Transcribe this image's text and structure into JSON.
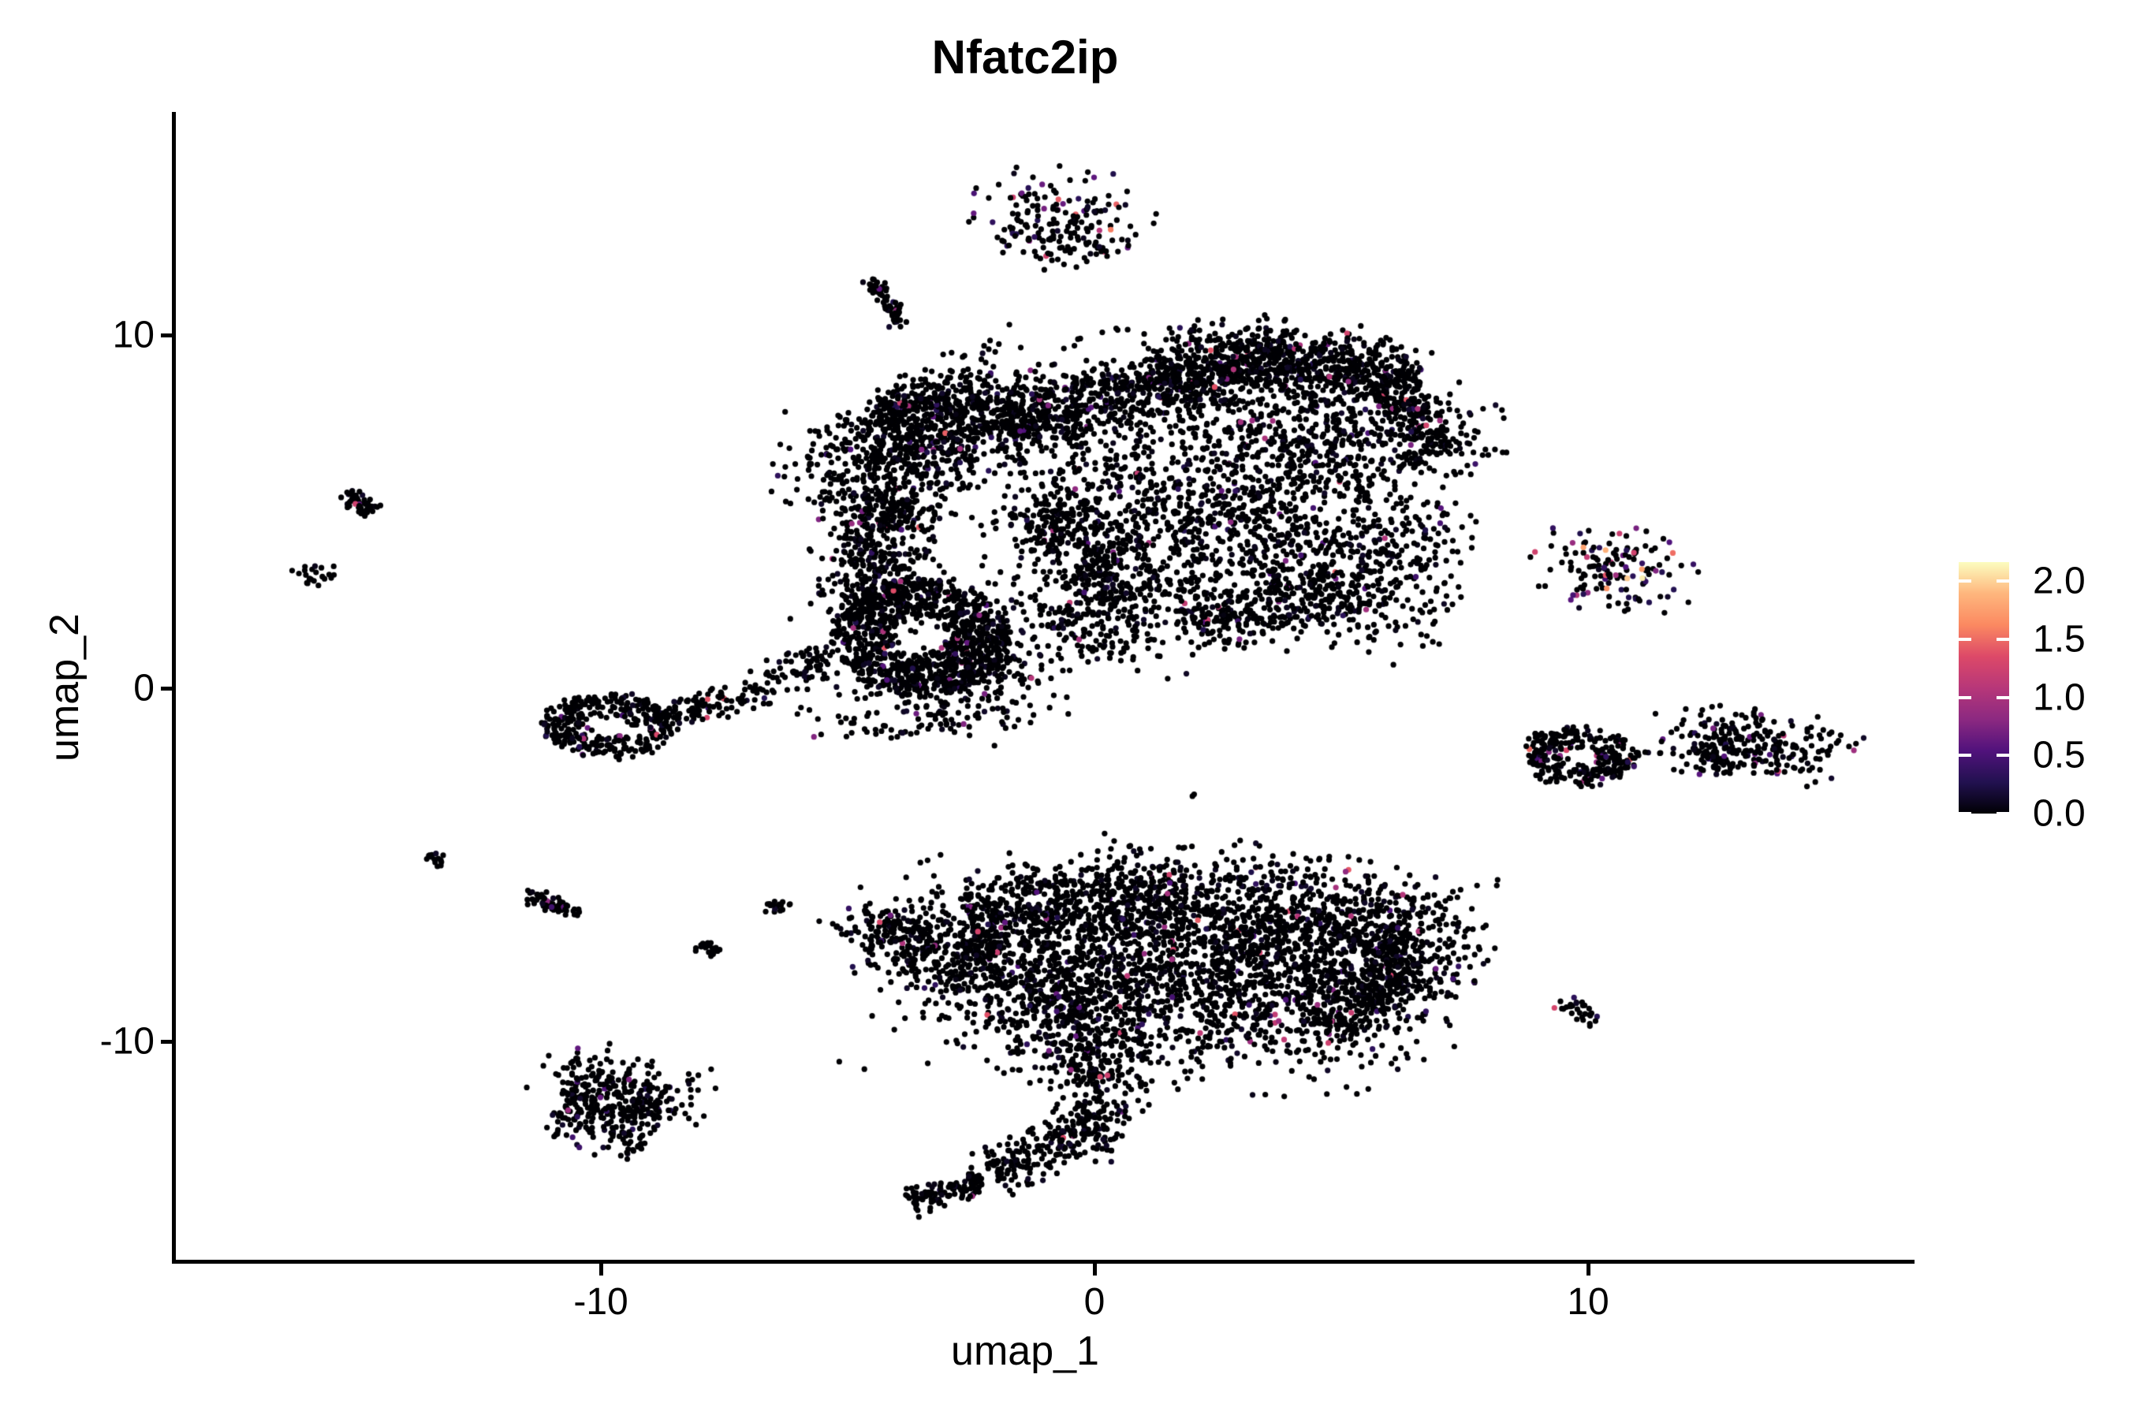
{
  "title": "Nfatc2ip",
  "axes": {
    "x": {
      "label": "umap_1",
      "ticks": [
        "-10",
        "0",
        "10"
      ],
      "tick_values": [
        -10,
        0,
        10
      ]
    },
    "y": {
      "label": "umap_2",
      "ticks": [
        "10",
        "0",
        "-10"
      ],
      "tick_values": [
        10,
        0,
        -10
      ]
    }
  },
  "legend": {
    "tick_labels": [
      "2.0",
      "1.5",
      "1.0",
      "0.5",
      "0.0"
    ],
    "tick_values": [
      2.0,
      1.5,
      1.0,
      0.5,
      0.0
    ],
    "vmin": 0.0,
    "vmax": 2.163,
    "colormap": "magma",
    "gradient_stops": [
      "#000004",
      "#221150",
      "#51127c",
      "#8c2981",
      "#b73779",
      "#dd4968",
      "#fb8961",
      "#feb67d",
      "#fcfdbf"
    ]
  },
  "chart_data": {
    "type": "scatter",
    "title": "Nfatc2ip",
    "xlabel": "umap_1",
    "ylabel": "umap_2",
    "xlim": [
      -18.627,
      16.613
    ],
    "ylim": [
      -16.272,
      16.317
    ],
    "x_ticks": [
      -10,
      0,
      10
    ],
    "y_ticks": [
      -10,
      0,
      10
    ],
    "grid": false,
    "background": "#ffffff",
    "point_radius_px": 3.6,
    "zero_expression_color": "#000004",
    "expression_vmax": 2.163,
    "seed": 1337,
    "default_pos_frac": 0.033,
    "default_max_v": 1.45,
    "clusters": [
      {
        "name": "top-island",
        "shape": "gauss",
        "c": [
          -0.65,
          13.35
        ],
        "r": [
          0.8,
          0.62
        ],
        "rot": -10,
        "n": 150,
        "pos_frac": 0.13,
        "max_v": 1.5
      },
      {
        "name": "top-island-fringe",
        "shape": "gauss",
        "c": [
          -0.45,
          12.55
        ],
        "r": [
          0.65,
          0.4
        ],
        "rot": 0,
        "n": 45,
        "pos_frac": 0.05,
        "max_v": 1.6
      },
      {
        "name": "comma-streak-upper",
        "shape": "streak",
        "p1": [
          -4.6,
          11.6
        ],
        "p2": [
          -4.15,
          10.9
        ],
        "w": 0.11,
        "n": 32,
        "pos_frac": 0.01
      },
      {
        "name": "comma-streak-lower",
        "shape": "streak",
        "p1": [
          -4.15,
          10.9
        ],
        "p2": [
          -3.95,
          10.15
        ],
        "w": 0.11,
        "n": 30,
        "pos_frac": 0.01
      },
      {
        "name": "main-knot",
        "shape": "gauss",
        "c": [
          -3.3,
          7.1
        ],
        "r": [
          1.35,
          0.75
        ],
        "rot": 38,
        "n": 900,
        "pos_frac": 0.035
      },
      {
        "name": "main-knot-cap",
        "shape": "gauss",
        "c": [
          -3.9,
          7.9
        ],
        "r": [
          0.55,
          0.3
        ],
        "rot": 38,
        "n": 130
      },
      {
        "name": "main-knot-west-fringe",
        "shape": "gauss",
        "c": [
          -5.2,
          6.3
        ],
        "r": [
          0.75,
          0.85
        ],
        "rot": 0,
        "n": 55
      },
      {
        "name": "main-band-left",
        "shape": "streak",
        "p1": [
          -1.8,
          7.35
        ],
        "p2": [
          1.2,
          8.65
        ],
        "w": 0.45,
        "n": 430
      },
      {
        "name": "main-band-mid",
        "shape": "streak",
        "p1": [
          1.2,
          8.7
        ],
        "p2": [
          4.2,
          9.4
        ],
        "w": 0.5,
        "n": 620
      },
      {
        "name": "main-band-right",
        "shape": "streak",
        "p1": [
          4.2,
          9.3
        ],
        "p2": [
          6.6,
          8.55
        ],
        "w": 0.45,
        "n": 390
      },
      {
        "name": "main-band-top-fringe",
        "shape": "gauss",
        "c": [
          2.9,
          9.95
        ],
        "r": [
          1.5,
          0.3
        ],
        "rot": 0,
        "n": 70
      },
      {
        "name": "main-right-upper",
        "shape": "gauss",
        "c": [
          4.9,
          7.3
        ],
        "r": [
          1.5,
          0.85
        ],
        "rot": -10,
        "n": 430
      },
      {
        "name": "main-right-edge",
        "shape": "streak",
        "p1": [
          6.35,
          8.2
        ],
        "p2": [
          6.9,
          6.5
        ],
        "w": 0.35,
        "n": 140
      },
      {
        "name": "main-right-mass",
        "shape": "gauss",
        "c": [
          3.1,
          4.6
        ],
        "r": [
          2.0,
          1.5
        ],
        "rot": 0,
        "n": 880
      },
      {
        "name": "main-right-lower",
        "shape": "gauss",
        "c": [
          5.5,
          3.4
        ],
        "r": [
          1.0,
          1.2
        ],
        "rot": 0,
        "n": 270
      },
      {
        "name": "main-bottom-right-edge",
        "shape": "streak",
        "p1": [
          1.8,
          2.1
        ],
        "p2": [
          5.2,
          2.8
        ],
        "w": 0.5,
        "n": 250
      },
      {
        "name": "main-center-sparse",
        "shape": "gauss",
        "c": [
          0.9,
          6.2
        ],
        "r": [
          1.8,
          1.1
        ],
        "rot": 0,
        "n": 210
      },
      {
        "name": "main-center-col",
        "shape": "gauss",
        "c": [
          -0.2,
          4.0
        ],
        "r": [
          1.0,
          1.6
        ],
        "rot": 0,
        "n": 230
      },
      {
        "name": "main-ridge",
        "shape": "streak",
        "p1": [
          -1.2,
          5.3
        ],
        "p2": [
          0.8,
          2.6
        ],
        "w": 0.5,
        "n": 280
      },
      {
        "name": "main-bottom-arc",
        "shape": "gauss",
        "c": [
          0.6,
          1.8
        ],
        "r": [
          1.5,
          0.6
        ],
        "rot": 0,
        "n": 200
      },
      {
        "name": "leftmid-ring",
        "shape": "ring",
        "c": [
          -3.5,
          1.45
        ],
        "r0": 0.6,
        "r1": 1.8,
        "sx": 1.0,
        "sy": 0.92,
        "n": 950,
        "pos_frac": 0.04
      },
      {
        "name": "leftmid-nw",
        "shape": "gauss",
        "c": [
          -4.5,
          2.75
        ],
        "r": [
          0.7,
          0.6
        ],
        "rot": 0,
        "n": 190
      },
      {
        "name": "leftmid-se",
        "shape": "gauss",
        "c": [
          -2.4,
          0.6
        ],
        "r": [
          0.8,
          0.5
        ],
        "rot": 0,
        "n": 170
      },
      {
        "name": "leftmid-arm-up",
        "shape": "streak",
        "p1": [
          -4.6,
          3.4
        ],
        "p2": [
          -3.95,
          5.35
        ],
        "w": 0.5,
        "n": 260
      },
      {
        "name": "leftmid-south-fringe",
        "shape": "gauss",
        "c": [
          -3.3,
          -0.75
        ],
        "r": [
          1.2,
          0.45
        ],
        "rot": 0,
        "n": 130
      },
      {
        "name": "west-arm-chain",
        "shape": "streak",
        "p1": [
          -5.35,
          0.95
        ],
        "p2": [
          -7.7,
          -0.6
        ],
        "w": 0.24,
        "n": 120
      },
      {
        "name": "west-strays",
        "shape": "gauss",
        "c": [
          -5.25,
          5.65
        ],
        "r": [
          0.22,
          0.18
        ],
        "rot": 0,
        "n": 8
      },
      {
        "name": "ring-cluster",
        "shape": "ring",
        "c": [
          -9.85,
          -1.05
        ],
        "r0": 0.4,
        "r1": 1.15,
        "sx": 1.15,
        "sy": 0.78,
        "n": 330,
        "pos_frac": 0.05
      },
      {
        "name": "ring-cluster-arm",
        "shape": "streak",
        "p1": [
          -8.85,
          -0.85
        ],
        "p2": [
          -7.75,
          -0.4
        ],
        "w": 0.2,
        "n": 65
      },
      {
        "name": "far-west-streak-upper",
        "shape": "streak",
        "p1": [
          -15.15,
          5.55
        ],
        "p2": [
          -14.55,
          4.9
        ],
        "w": 0.14,
        "n": 50
      },
      {
        "name": "far-west-mark",
        "shape": "gauss",
        "c": [
          -15.9,
          3.2
        ],
        "r": [
          0.24,
          0.17
        ],
        "rot": 20,
        "n": 22
      },
      {
        "name": "west-dot-pair",
        "shape": "streak",
        "p1": [
          -13.45,
          -4.68
        ],
        "p2": [
          -13.15,
          -4.95
        ],
        "w": 0.1,
        "n": 14
      },
      {
        "name": "west-streak",
        "shape": "streak",
        "p1": [
          -11.55,
          -5.85
        ],
        "p2": [
          -10.4,
          -6.4
        ],
        "w": 0.13,
        "n": 56
      },
      {
        "name": "west-tick-1",
        "shape": "streak",
        "p1": [
          -8.05,
          -7.25
        ],
        "p2": [
          -7.7,
          -7.55
        ],
        "w": 0.12,
        "n": 20
      },
      {
        "name": "west-tick-2",
        "shape": "streak",
        "p1": [
          -6.65,
          -6.05
        ],
        "p2": [
          -6.25,
          -6.3
        ],
        "w": 0.12,
        "n": 16
      },
      {
        "name": "west-stray-dots",
        "shape": "streak",
        "p1": [
          -5.7,
          -6.55
        ],
        "p2": [
          -5.0,
          -6.9
        ],
        "w": 0.06,
        "n": 5
      },
      {
        "name": "bottom-top-band",
        "shape": "streak",
        "p1": [
          -2.6,
          -6.3
        ],
        "p2": [
          1.6,
          -5.75
        ],
        "w": 0.5,
        "n": 380
      },
      {
        "name": "bottom-ne-knot",
        "shape": "gauss",
        "c": [
          3.4,
          -6.45
        ],
        "r": [
          1.9,
          0.95
        ],
        "rot": -8,
        "n": 760,
        "pos_frac": 0.04
      },
      {
        "name": "bottom-right-tip",
        "shape": "gauss",
        "c": [
          6.1,
          -7.0
        ],
        "r": [
          0.95,
          0.8
        ],
        "rot": 0,
        "n": 280
      },
      {
        "name": "bottom-se-edge",
        "shape": "streak",
        "p1": [
          6.6,
          -7.8
        ],
        "p2": [
          4.6,
          -9.6
        ],
        "w": 0.4,
        "n": 220
      },
      {
        "name": "bottom-body",
        "shape": "gauss",
        "c": [
          1.3,
          -8.1
        ],
        "r": [
          2.6,
          1.35
        ],
        "rot": -5,
        "n": 1150
      },
      {
        "name": "bottom-body-right",
        "shape": "gauss",
        "c": [
          4.3,
          -8.7
        ],
        "r": [
          1.4,
          0.9
        ],
        "rot": -10,
        "n": 420
      },
      {
        "name": "bottom-left-wing",
        "shape": "streak",
        "p1": [
          -4.5,
          -7.0
        ],
        "p2": [
          -1.8,
          -7.6
        ],
        "w": 0.55,
        "n": 300
      },
      {
        "name": "bottom-wing-tip",
        "shape": "gauss",
        "c": [
          -4.35,
          -6.75
        ],
        "r": [
          0.4,
          0.35
        ],
        "rot": 0,
        "n": 60
      },
      {
        "name": "bottom-left-mass",
        "shape": "gauss",
        "c": [
          -1.2,
          -8.0
        ],
        "r": [
          1.2,
          1.0
        ],
        "rot": 0,
        "n": 380
      },
      {
        "name": "bottom-neck",
        "shape": "gauss",
        "c": [
          -0.15,
          -9.9
        ],
        "r": [
          0.75,
          0.85
        ],
        "rot": 0,
        "n": 230
      },
      {
        "name": "bottom-tail",
        "shape": "gauss",
        "c": [
          0.0,
          -11.4
        ],
        "r": [
          0.45,
          0.95
        ],
        "rot": 0,
        "n": 170
      },
      {
        "name": "bottom-tail-curve",
        "shape": "streak",
        "p1": [
          0.15,
          -12.3
        ],
        "p2": [
          -2.1,
          -13.75
        ],
        "w": 0.35,
        "n": 200
      },
      {
        "name": "bottom-tail-tip",
        "shape": "streak",
        "p1": [
          -2.3,
          -13.9
        ],
        "p2": [
          -3.75,
          -14.6
        ],
        "w": 0.22,
        "n": 110
      },
      {
        "name": "bottom-top-strays",
        "shape": "gauss",
        "c": [
          -0.5,
          -5.35
        ],
        "r": [
          1.5,
          0.3
        ],
        "rot": 0,
        "n": 28
      },
      {
        "name": "isolated-dot",
        "shape": "gauss",
        "c": [
          2.0,
          -3.05
        ],
        "r": [
          0.05,
          0.05
        ],
        "rot": 0,
        "n": 2,
        "pos_frac": 0
      },
      {
        "name": "sw-arc",
        "shape": "streak",
        "p1": [
          -10.9,
          -11.65
        ],
        "p2": [
          -8.95,
          -12.5
        ],
        "w": 0.5,
        "n": 240,
        "pos_frac": 0.05,
        "max_v": 0.9
      },
      {
        "name": "sw-upper",
        "shape": "gauss",
        "c": [
          -9.5,
          -11.25
        ],
        "r": [
          0.8,
          0.45
        ],
        "rot": -15,
        "n": 140,
        "pos_frac": 0.03,
        "max_v": 0.9
      },
      {
        "name": "sw-strays",
        "shape": "gauss",
        "c": [
          -10.3,
          -10.45
        ],
        "r": [
          0.35,
          0.25
        ],
        "rot": 0,
        "n": 10
      },
      {
        "name": "east-top",
        "shape": "gauss",
        "c": [
          10.45,
          3.45
        ],
        "r": [
          0.75,
          0.55
        ],
        "rot": -15,
        "n": 145,
        "pos_frac": 0.22,
        "max_v": 2.16
      },
      {
        "name": "east-mid",
        "shape": "ring",
        "c": [
          9.85,
          -1.95
        ],
        "r0": 0.28,
        "r1": 0.95,
        "sx": 1.2,
        "sy": 0.85,
        "n": 260,
        "pos_frac": 0.07,
        "max_v": 1.5
      },
      {
        "name": "east-mid-tip",
        "shape": "streak",
        "p1": [
          8.85,
          -1.35
        ],
        "p2": [
          9.35,
          -1.6
        ],
        "w": 0.15,
        "n": 30
      },
      {
        "name": "east-dots",
        "shape": "streak",
        "p1": [
          11.1,
          -1.8
        ],
        "p2": [
          12.25,
          -1.78
        ],
        "w": 0.04,
        "n": 7,
        "pos_frac": 0
      },
      {
        "name": "east-blob",
        "shape": "gauss",
        "c": [
          13.35,
          -1.6
        ],
        "r": [
          0.95,
          0.5
        ],
        "rot": -10,
        "n": 240,
        "pos_frac": 0.06
      },
      {
        "name": "east-blob-fringe",
        "shape": "gauss",
        "c": [
          12.55,
          -1.95
        ],
        "r": [
          0.3,
          0.25
        ],
        "rot": 0,
        "n": 35
      },
      {
        "name": "east-bottom-streak",
        "shape": "streak",
        "p1": [
          9.45,
          -8.85
        ],
        "p2": [
          10.15,
          -9.45
        ],
        "w": 0.13,
        "n": 30
      }
    ]
  }
}
